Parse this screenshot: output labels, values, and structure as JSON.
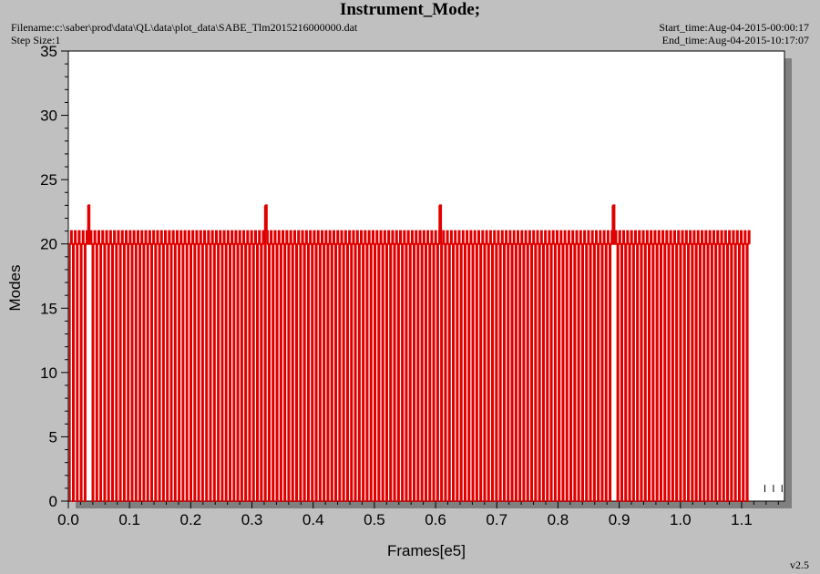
{
  "header": {
    "title": "Instrument_Mode;",
    "filename": "Filename:c:\\saber\\prod\\data\\QL\\data\\plot_data\\SABE_Tlm2015216000000.dat",
    "step_size": "Step Size:1",
    "start_time": "Start_time:Aug-04-2015-00:00:17",
    "end_time": "End_time:Aug-04-2015-10:17:07"
  },
  "version": "v2.5",
  "chart_data": {
    "type": "line",
    "title": "Instrument_Mode;",
    "xlabel": "Frames[e5]",
    "ylabel": "Modes",
    "xlim": [
      0.0,
      1.17
    ],
    "ylim": [
      0,
      35
    ],
    "xticks": [
      "0.0",
      "0.1",
      "0.2",
      "0.3",
      "0.4",
      "0.5",
      "0.6",
      "0.7",
      "0.8",
      "0.9",
      "1.0",
      "1.1"
    ],
    "yticks": [
      "0",
      "5",
      "10",
      "15",
      "20",
      "25",
      "30",
      "35"
    ],
    "grid": false,
    "series_color": "#e00000",
    "data_x_end": 1.113,
    "base_level": 20,
    "cycle_levels": [
      0,
      20,
      21,
      20
    ],
    "cycle_period": 0.0064,
    "spikes": [
      {
        "x": 0.033,
        "value": 23
      },
      {
        "x": 0.322,
        "value": 23
      },
      {
        "x": 0.607,
        "value": 23
      },
      {
        "x": 0.89,
        "value": 23
      }
    ],
    "scatter_points": [
      {
        "x": 1.138,
        "value": 0.7
      },
      {
        "x": 1.152,
        "value": 0.7
      },
      {
        "x": 1.166,
        "value": 0.7
      }
    ],
    "colors": {
      "background": "#c0c0c0",
      "plot_bg": "#ffffff",
      "shadow": "#808080"
    }
  }
}
